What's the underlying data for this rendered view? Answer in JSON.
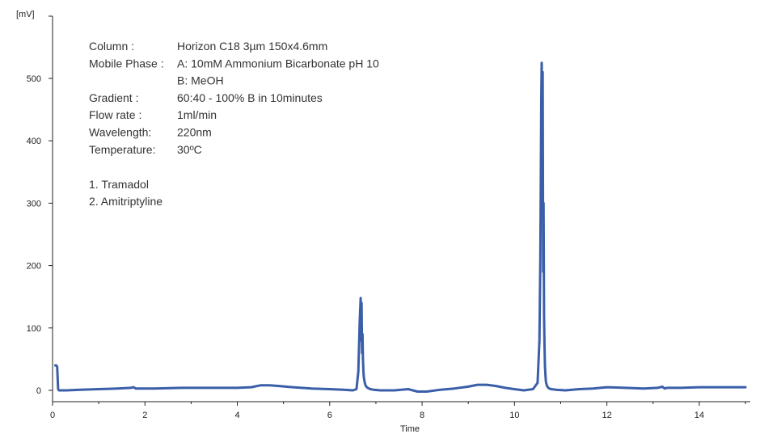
{
  "chart_data": {
    "type": "line",
    "title": "",
    "xlabel": "Time",
    "ylabel": "[mV]",
    "xlim": [
      0,
      15
    ],
    "ylim": [
      -15,
      600
    ],
    "x_ticks": [
      0,
      2,
      4,
      6,
      8,
      10,
      12,
      14
    ],
    "y_ticks": [
      0,
      100,
      200,
      300,
      400,
      500
    ],
    "grid": false,
    "legend": "none",
    "line_color": "#3a5fa8",
    "series": [
      {
        "x": [
          0.06,
          0.08,
          0.1,
          0.12,
          0.14,
          0.3,
          0.6,
          1.0,
          1.4,
          1.7,
          1.75,
          1.8,
          2.2,
          2.8,
          3.4,
          4.0,
          4.3,
          4.5,
          4.7,
          4.9,
          5.2,
          5.6,
          6.0,
          6.3,
          6.5,
          6.58,
          6.62,
          6.65,
          6.67,
          6.68,
          6.69,
          6.7,
          6.71,
          6.72,
          6.73,
          6.74,
          6.76,
          6.78,
          6.82,
          6.88,
          6.95,
          7.1,
          7.4,
          7.7,
          7.9,
          8.1,
          8.4,
          8.7,
          9.0,
          9.2,
          9.4,
          9.6,
          9.8,
          10.0,
          10.2,
          10.4,
          10.5,
          10.54,
          10.56,
          10.58,
          10.59,
          10.6,
          10.61,
          10.62,
          10.63,
          10.64,
          10.65,
          10.66,
          10.67,
          10.68,
          10.7,
          10.72,
          10.75,
          10.8,
          10.9,
          11.1,
          11.4,
          11.7,
          12.0,
          12.4,
          12.8,
          13.1,
          13.2,
          13.25,
          13.3,
          13.6,
          14.0,
          14.5,
          15.0
        ],
        "y": [
          40,
          40,
          38,
          2,
          0,
          0,
          1,
          2,
          3,
          4,
          5,
          3,
          3,
          4,
          4,
          4,
          5,
          8,
          8,
          7,
          5,
          3,
          2,
          1,
          0,
          2,
          30,
          110,
          148,
          80,
          140,
          60,
          90,
          50,
          30,
          20,
          12,
          7,
          4,
          2,
          1,
          0,
          0,
          2,
          -2,
          -2,
          1,
          3,
          6,
          9,
          9,
          7,
          4,
          2,
          0,
          2,
          12,
          80,
          210,
          470,
          525,
          360,
          510,
          190,
          300,
          120,
          70,
          40,
          25,
          14,
          8,
          5,
          3,
          2,
          1,
          0,
          2,
          3,
          5,
          4,
          3,
          4,
          6,
          3,
          4,
          4,
          5,
          5,
          5
        ]
      }
    ],
    "annotations": {
      "conditions": [
        {
          "label": "Column :",
          "value": "Horizon C18 3µm 150x4.6mm"
        },
        {
          "label": "Mobile Phase :",
          "value": "A: 10mM Ammonium Bicarbonate pH 10"
        },
        {
          "label": "",
          "value": "B:  MeOH"
        },
        {
          "label": "Gradient :",
          "value": "60:40 - 100% B in 10minutes"
        },
        {
          "label": "Flow rate :",
          "value": "1ml/min"
        },
        {
          "label": "Wavelength:",
          "value": "220nm"
        },
        {
          "label": "Temperature:",
          "value": "30ºC"
        }
      ],
      "peaks": [
        "1. Tramadol",
        "2. Amitriptyline"
      ]
    }
  }
}
